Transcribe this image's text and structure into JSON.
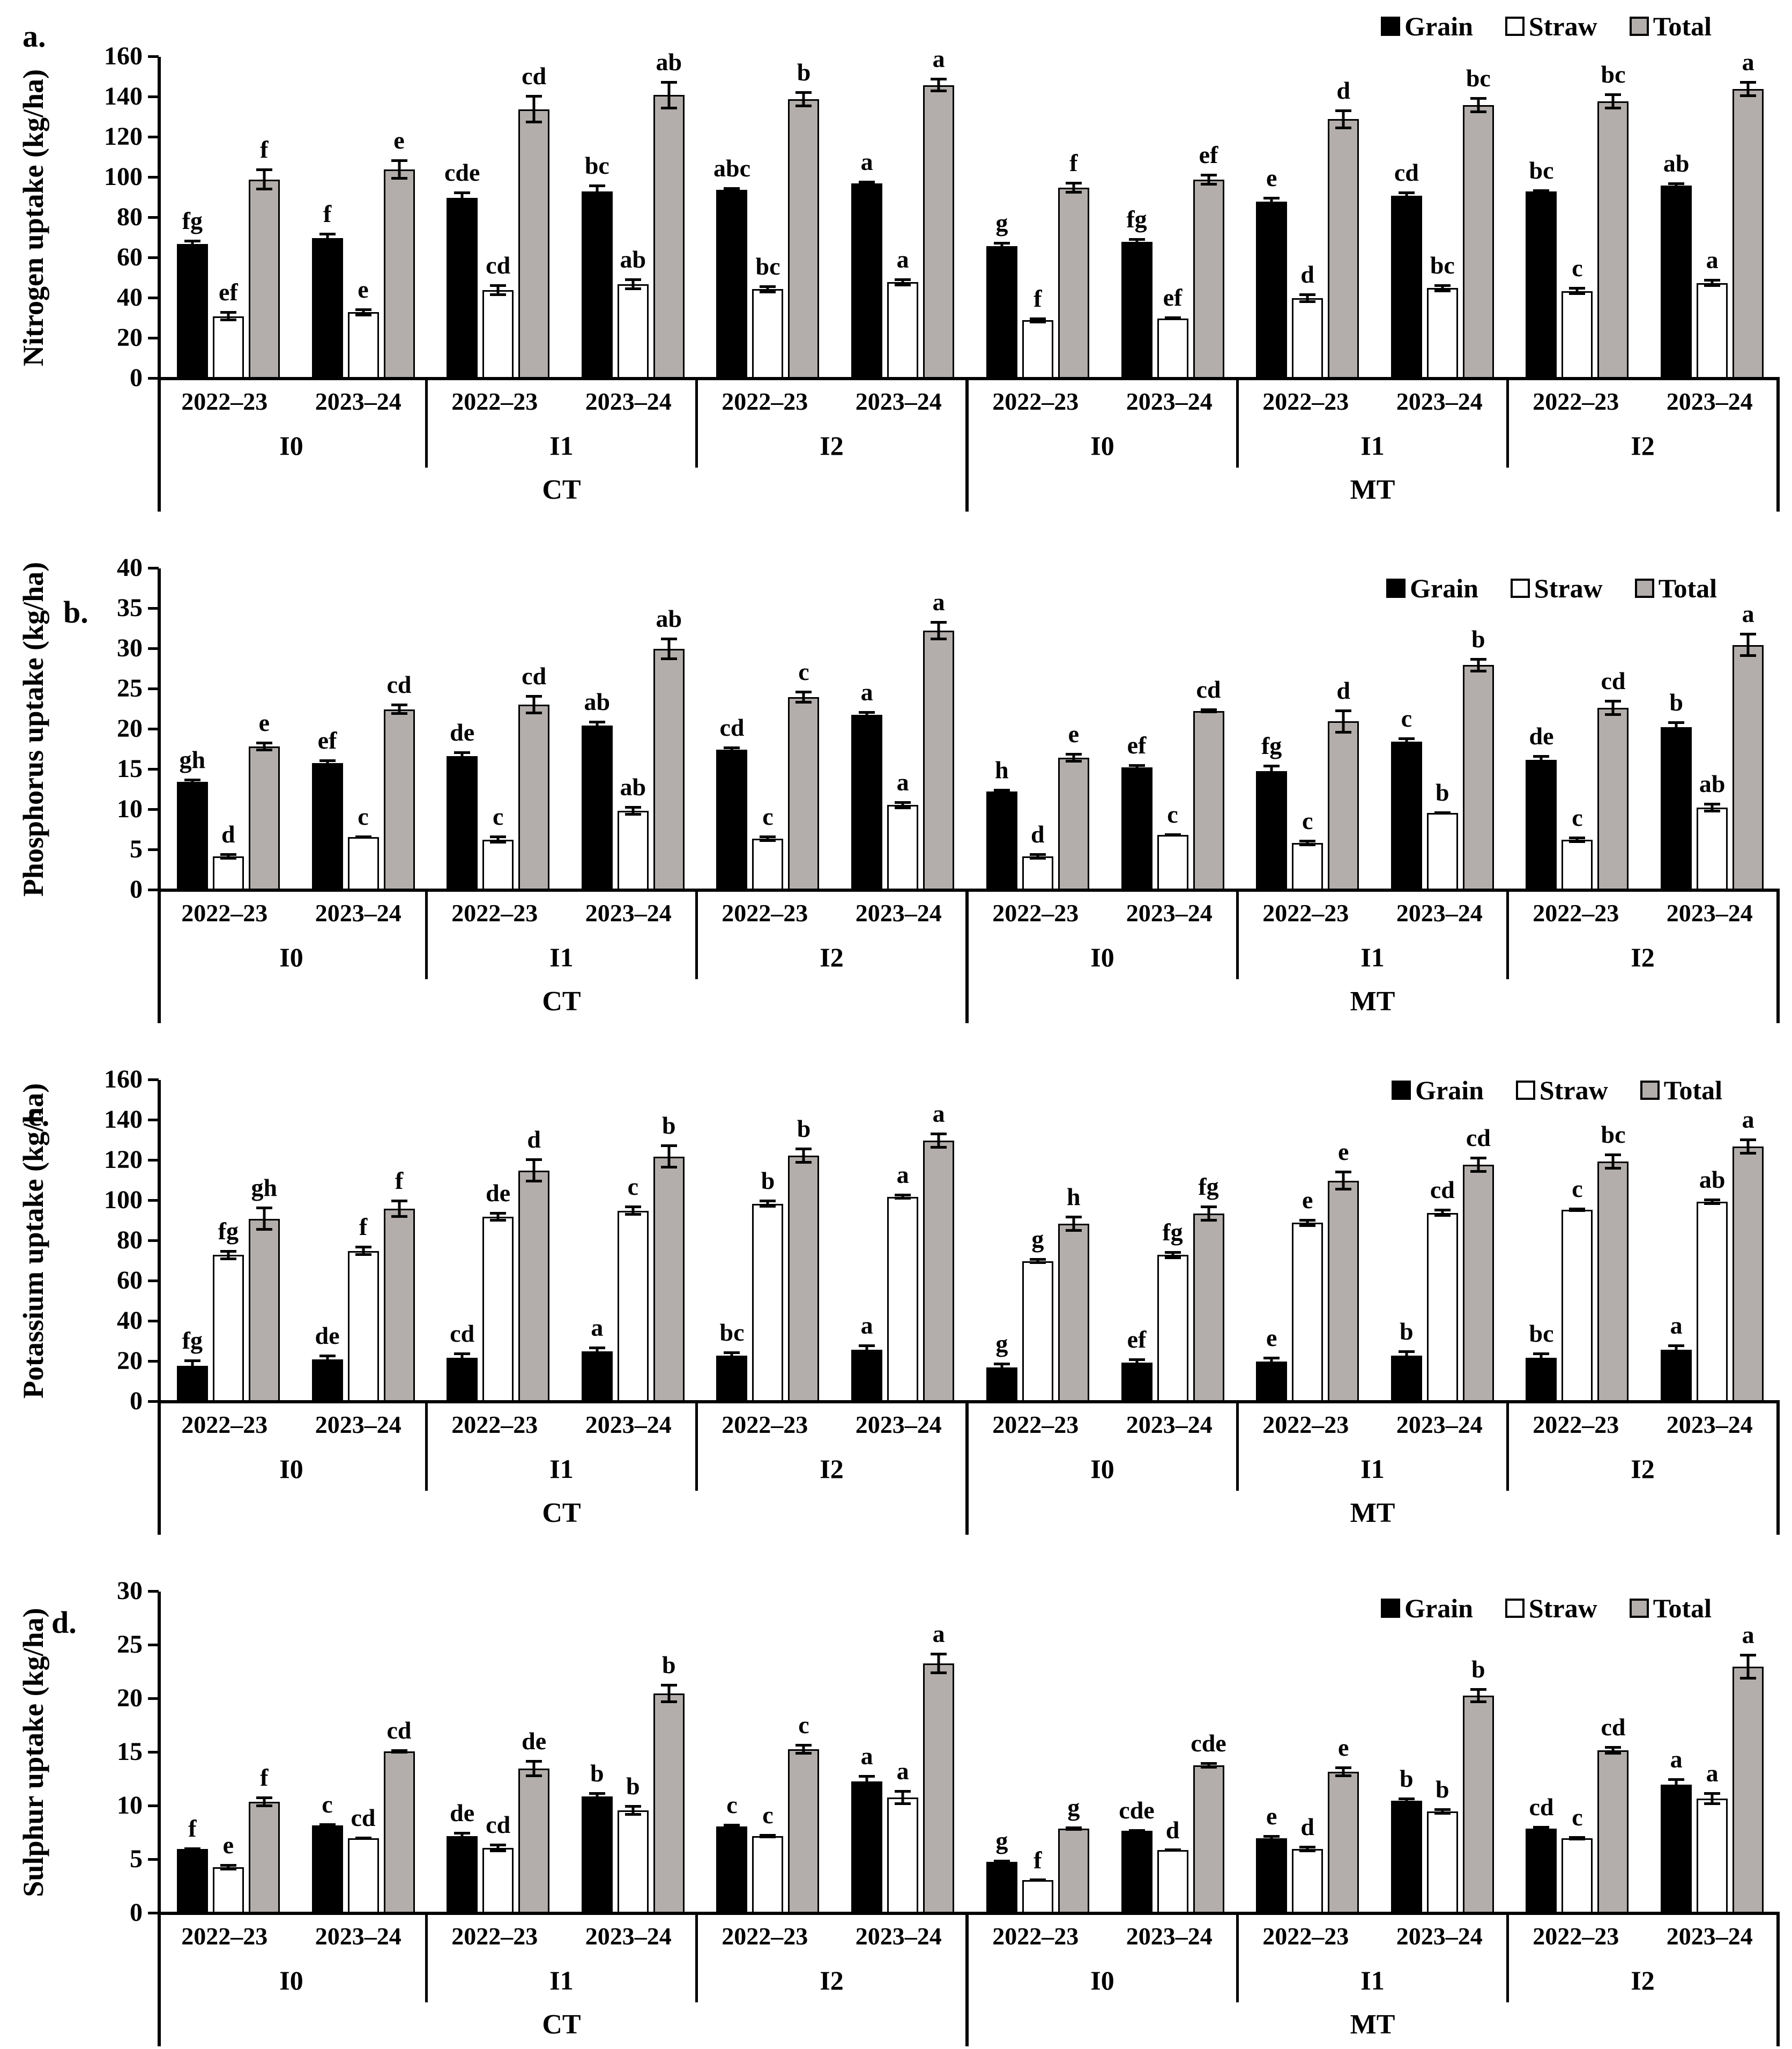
{
  "colors": {
    "grain": "#000000",
    "straw": "#ffffff",
    "total": "#b3aeab",
    "axis": "#000000"
  },
  "chart_data": [
    {
      "id": "a",
      "panel_label": "a.",
      "type": "bar",
      "ylabel": "Nitrogen uptake (kg/ha)",
      "ylim": [
        0,
        160
      ],
      "ytick_step": 20,
      "yticks": [
        "0",
        "20",
        "40",
        "60",
        "80",
        "100",
        "120",
        "140",
        "160"
      ],
      "grid": false,
      "legend_position": "top-right",
      "error_bars": true,
      "group_order": "CT/MT x I0/I1/I2 x 2022-23/2023-24",
      "categories": {
        "tillage": [
          "CT",
          "MT"
        ],
        "irrigation": [
          "I0",
          "I1",
          "I2"
        ],
        "years": [
          "2022–23",
          "2023–24"
        ]
      },
      "series": [
        {
          "name": "Grain",
          "fill": "#000000",
          "values": [
            67,
            70,
            90,
            93,
            94,
            97,
            66,
            68,
            88,
            91,
            93,
            96
          ],
          "errors": [
            2,
            2.5,
            3,
            3.5,
            1.2,
            1.5,
            2,
            2,
            2.5,
            2,
            1.2,
            1.5
          ],
          "letters": [
            "fg",
            "f",
            "cde",
            "bc",
            "abc",
            "a",
            "g",
            "fg",
            "e",
            "cd",
            "bc",
            "ab"
          ]
        },
        {
          "name": "Straw",
          "fill": "#ffffff",
          "values": [
            31,
            33,
            44,
            47,
            44.5,
            48,
            29,
            30,
            40,
            45,
            43.5,
            47.5
          ],
          "errors": [
            2.5,
            2,
            3,
            3,
            2,
            2,
            1.5,
            1,
            2.5,
            2,
            2,
            2
          ],
          "letters": [
            "ef",
            "e",
            "cd",
            "ab",
            "bc",
            "a",
            "f",
            "ef",
            "d",
            "bc",
            "c",
            "a"
          ]
        },
        {
          "name": "Total",
          "fill": "#b3aeab",
          "values": [
            99,
            104,
            134,
            141,
            139,
            146,
            95,
            99,
            129,
            136,
            138,
            144
          ],
          "errors": [
            5.5,
            5,
            7,
            7,
            4,
            3.5,
            3,
            3,
            5,
            4,
            4,
            4
          ],
          "letters": [
            "f",
            "e",
            "cd",
            "ab",
            "b",
            "a",
            "f",
            "ef",
            "d",
            "bc",
            "bc",
            "a"
          ]
        }
      ]
    },
    {
      "id": "b",
      "panel_label": "b.",
      "type": "bar",
      "ylabel": "Phosphorus uptake (kg/ha)",
      "ylim": [
        0,
        40
      ],
      "ytick_step": 5,
      "yticks": [
        "0",
        "5",
        "10",
        "15",
        "20",
        "25",
        "30",
        "35",
        "40"
      ],
      "grid": false,
      "legend_position": "top-right",
      "error_bars": true,
      "group_order": "CT/MT x I0/I1/I2 x 2022-23/2023-24",
      "categories": {
        "tillage": [
          "CT",
          "MT"
        ],
        "irrigation": [
          "I0",
          "I1",
          "I2"
        ],
        "years": [
          "2022–23",
          "2023–24"
        ]
      },
      "series": [
        {
          "name": "Grain",
          "fill": "#000000",
          "values": [
            13.5,
            15.8,
            16.7,
            20.5,
            17.5,
            21.8,
            12.3,
            15.3,
            14.8,
            18.5,
            16.2,
            20.3
          ],
          "errors": [
            0.4,
            0.5,
            0.6,
            0.6,
            0.4,
            0.5,
            0.3,
            0.4,
            0.8,
            0.5,
            0.6,
            0.7
          ],
          "letters": [
            "gh",
            "ef",
            "de",
            "ab",
            "cd",
            "a",
            "h",
            "ef",
            "fg",
            "c",
            "de",
            "b"
          ]
        },
        {
          "name": "Straw",
          "fill": "#ffffff",
          "values": [
            4.2,
            6.6,
            6.3,
            9.9,
            6.4,
            10.6,
            4.2,
            6.9,
            5.9,
            9.6,
            6.3,
            10.3
          ],
          "errors": [
            0.4,
            0.2,
            0.5,
            0.6,
            0.4,
            0.5,
            0.4,
            0.2,
            0.4,
            0.2,
            0.4,
            0.6
          ],
          "letters": [
            "d",
            "c",
            "c",
            "ab",
            "c",
            "a",
            "d",
            "c",
            "c",
            "b",
            "c",
            "ab"
          ]
        },
        {
          "name": "Total",
          "fill": "#b3aeab",
          "values": [
            17.9,
            22.5,
            23.1,
            30,
            24,
            32.3,
            16.5,
            22.3,
            21,
            28,
            22.7,
            30.5
          ],
          "errors": [
            0.6,
            0.7,
            1.2,
            1.4,
            0.8,
            1.2,
            0.6,
            0.3,
            1.5,
            0.9,
            1,
            1.5
          ],
          "letters": [
            "e",
            "cd",
            "cd",
            "ab",
            "c",
            "a",
            "e",
            "cd",
            "d",
            "b",
            "cd",
            "a"
          ]
        }
      ]
    },
    {
      "id": "c",
      "panel_label": "c.",
      "type": "bar",
      "ylabel": "Potassium uptake (kg/ha)",
      "ylim": [
        0,
        160
      ],
      "ytick_step": 20,
      "yticks": [
        "0",
        "20",
        "40",
        "60",
        "80",
        "100",
        "120",
        "140",
        "160"
      ],
      "grid": false,
      "legend_position": "top-right",
      "error_bars": true,
      "group_order": "CT/MT x I0/I1/I2 x 2022-23/2023-24",
      "categories": {
        "tillage": [
          "CT",
          "MT"
        ],
        "irrigation": [
          "I0",
          "I1",
          "I2"
        ],
        "years": [
          "2022–23",
          "2023–24"
        ]
      },
      "series": [
        {
          "name": "Grain",
          "fill": "#000000",
          "values": [
            18,
            21,
            22,
            25,
            23,
            26,
            17,
            19.5,
            20,
            23,
            22,
            26
          ],
          "errors": [
            3,
            2.5,
            2.5,
            2.5,
            2,
            2.5,
            2.5,
            2,
            2.5,
            2.5,
            2.5,
            2.5
          ],
          "letters": [
            "fg",
            "de",
            "cd",
            "a",
            "bc",
            "a",
            "g",
            "ef",
            "e",
            "b",
            "bc",
            "a"
          ]
        },
        {
          "name": "Straw",
          "fill": "#ffffff",
          "values": [
            73,
            75,
            92,
            95,
            98.5,
            102,
            70,
            73,
            89,
            94,
            95.5,
            99.5
          ],
          "errors": [
            2.5,
            2.5,
            2.5,
            2.5,
            2,
            1.5,
            1.5,
            2,
            2,
            2,
            1,
            1.5
          ],
          "letters": [
            "fg",
            "f",
            "de",
            "c",
            "b",
            "a",
            "g",
            "fg",
            "e",
            "cd",
            "c",
            "ab"
          ]
        },
        {
          "name": "Total",
          "fill": "#b3aeab",
          "values": [
            91,
            96,
            115,
            122,
            122.5,
            130,
            88.5,
            93.5,
            110,
            118,
            119.5,
            127
          ],
          "errors": [
            6,
            4.5,
            6,
            6,
            4,
            4,
            4,
            4,
            5,
            4,
            4,
            4
          ],
          "letters": [
            "gh",
            "f",
            "d",
            "b",
            "b",
            "a",
            "h",
            "fg",
            "e",
            "cd",
            "bc",
            "a"
          ]
        }
      ]
    },
    {
      "id": "d",
      "panel_label": "d.",
      "type": "bar",
      "ylabel": "Sulphur uptake (kg/ha)",
      "ylim": [
        0,
        30
      ],
      "ytick_step": 5,
      "yticks": [
        "0",
        "5",
        "10",
        "15",
        "20",
        "25",
        "30"
      ],
      "grid": false,
      "legend_position": "top-right",
      "error_bars": true,
      "group_order": "CT/MT x I0/I1/I2 x 2022-23/2023-24",
      "categories": {
        "tillage": [
          "CT",
          "MT"
        ],
        "irrigation": [
          "I0",
          "I1",
          "I2"
        ],
        "years": [
          "2022–23",
          "2023–24"
        ]
      },
      "series": [
        {
          "name": "Grain",
          "fill": "#000000",
          "values": [
            6,
            8.2,
            7.2,
            10.9,
            8.1,
            12.3,
            4.8,
            7.7,
            7,
            10.5,
            7.9,
            12
          ],
          "errors": [
            0.15,
            0.2,
            0.4,
            0.4,
            0.25,
            0.6,
            0.2,
            0.15,
            0.3,
            0.3,
            0.25,
            0.6
          ],
          "letters": [
            "f",
            "c",
            "de",
            "b",
            "c",
            "a",
            "g",
            "cde",
            "e",
            "b",
            "cd",
            "a"
          ]
        },
        {
          "name": "Straw",
          "fill": "#ffffff",
          "values": [
            4.3,
            7,
            6.1,
            9.6,
            7.2,
            10.8,
            3.1,
            5.9,
            6,
            9.5,
            7,
            10.7
          ],
          "errors": [
            0.3,
            0.15,
            0.4,
            0.5,
            0.2,
            0.7,
            0.1,
            0.1,
            0.3,
            0.3,
            0.2,
            0.6
          ],
          "letters": [
            "e",
            "cd",
            "cd",
            "b",
            "c",
            "a",
            "f",
            "d",
            "d",
            "b",
            "c",
            "a"
          ]
        },
        {
          "name": "Total",
          "fill": "#b3aeab",
          "values": [
            10.4,
            15.1,
            13.5,
            20.5,
            15.3,
            23.3,
            7.9,
            13.8,
            13.2,
            20.3,
            15.2,
            23
          ],
          "errors": [
            0.5,
            0.2,
            0.8,
            0.9,
            0.5,
            1,
            0.2,
            0.3,
            0.5,
            0.7,
            0.4,
            1.2
          ],
          "letters": [
            "f",
            "cd",
            "de",
            "b",
            "c",
            "a",
            "g",
            "cde",
            "e",
            "b",
            "cd",
            "a"
          ]
        }
      ]
    }
  ]
}
